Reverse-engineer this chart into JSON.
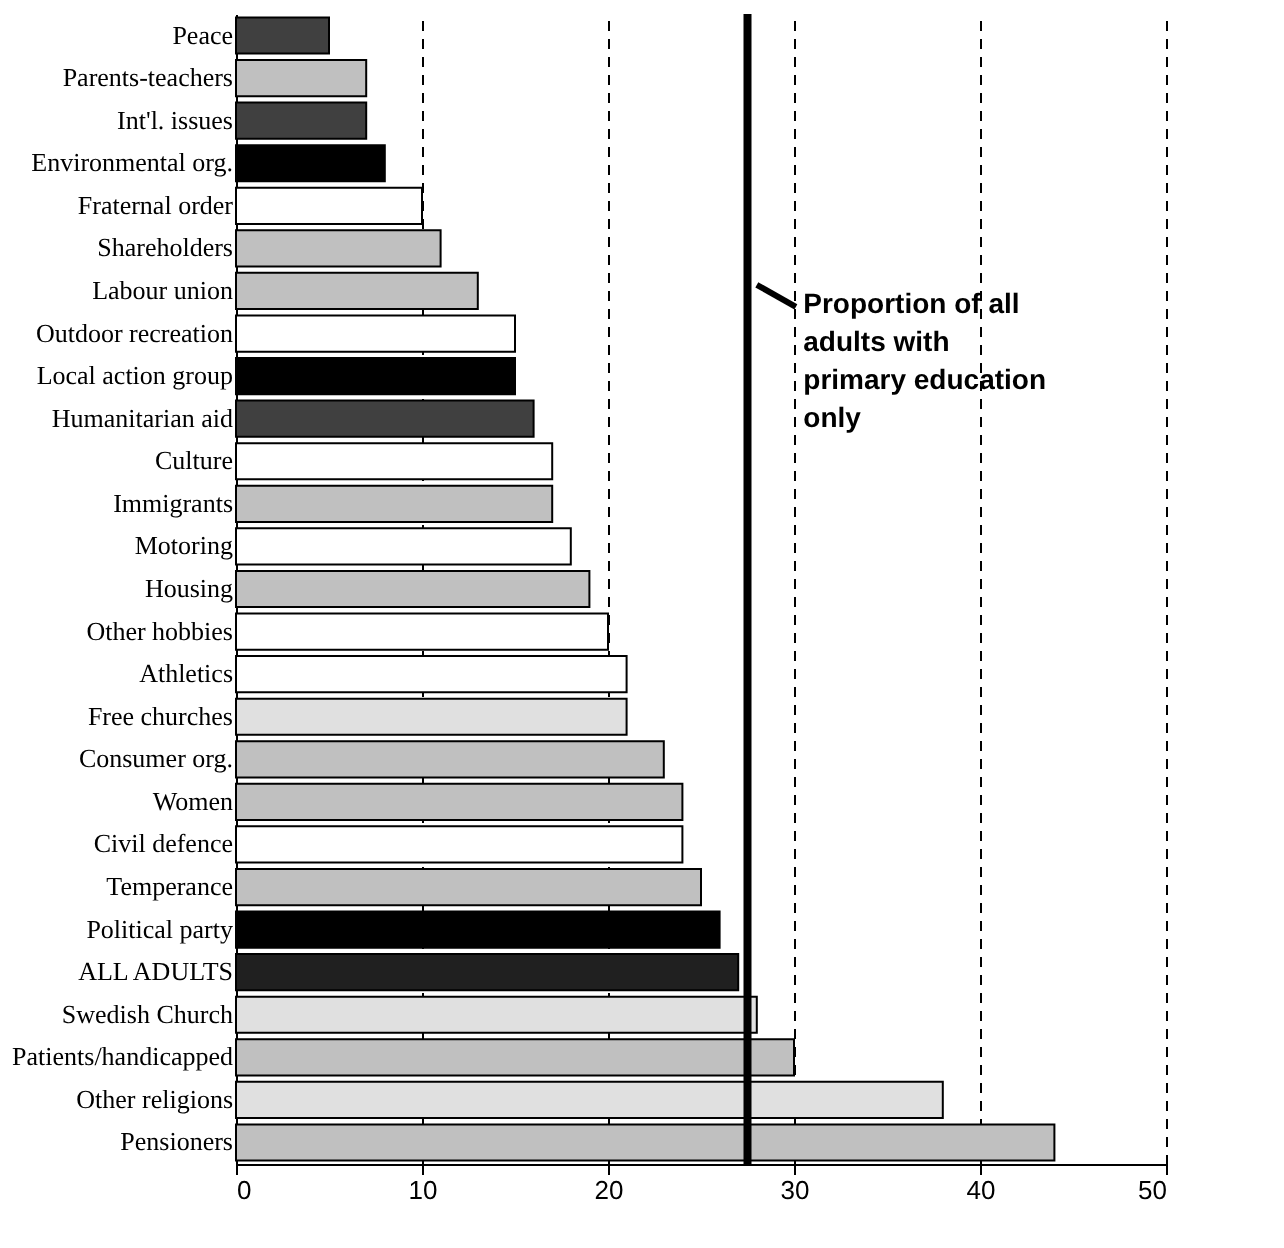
{
  "chart_data": {
    "type": "bar",
    "orientation": "horizontal",
    "categories": [
      "Peace",
      "Parents-teachers",
      "Int'l. issues",
      "Environmental org.",
      "Fraternal order",
      "Shareholders",
      "Labour union",
      "Outdoor recreation",
      "Local action group",
      "Humanitarian aid",
      "Culture",
      "Immigrants",
      "Motoring",
      "Housing",
      "Other hobbies",
      "Athletics",
      "Free churches",
      "Consumer org.",
      "Women",
      "Civil defence",
      "Temperance",
      "Political party",
      "ALL ADULTS",
      "Swedish Church",
      "Patients/handicapped",
      "Other religions",
      "Pensioners"
    ],
    "values": [
      5,
      7,
      7,
      8,
      10,
      11,
      13,
      15,
      15,
      16,
      17,
      17,
      18,
      19,
      20,
      21,
      21,
      23,
      24,
      24,
      25,
      26,
      27,
      28,
      30,
      38,
      44
    ],
    "colors": [
      "#404040",
      "#c0c0c0",
      "#404040",
      "#000000",
      "#ffffff",
      "#c0c0c0",
      "#c0c0c0",
      "#ffffff",
      "#000000",
      "#404040",
      "#ffffff",
      "#c0c0c0",
      "#ffffff",
      "#c0c0c0",
      "#ffffff",
      "#ffffff",
      "#e0e0e0",
      "#c0c0c0",
      "#c0c0c0",
      "#ffffff",
      "#c0c0c0",
      "#000000",
      "#202020",
      "#e0e0e0",
      "#c0c0c0",
      "#e0e0e0",
      "#c0c0c0"
    ],
    "xlim": [
      0,
      50
    ],
    "xticks": [
      0,
      10,
      20,
      30,
      40,
      50
    ],
    "grid": "x",
    "ref_lines": [
      {
        "axis": "x",
        "value": 27.5,
        "label": "Proportion of all adults with primary education only",
        "color": "#000000"
      }
    ]
  }
}
